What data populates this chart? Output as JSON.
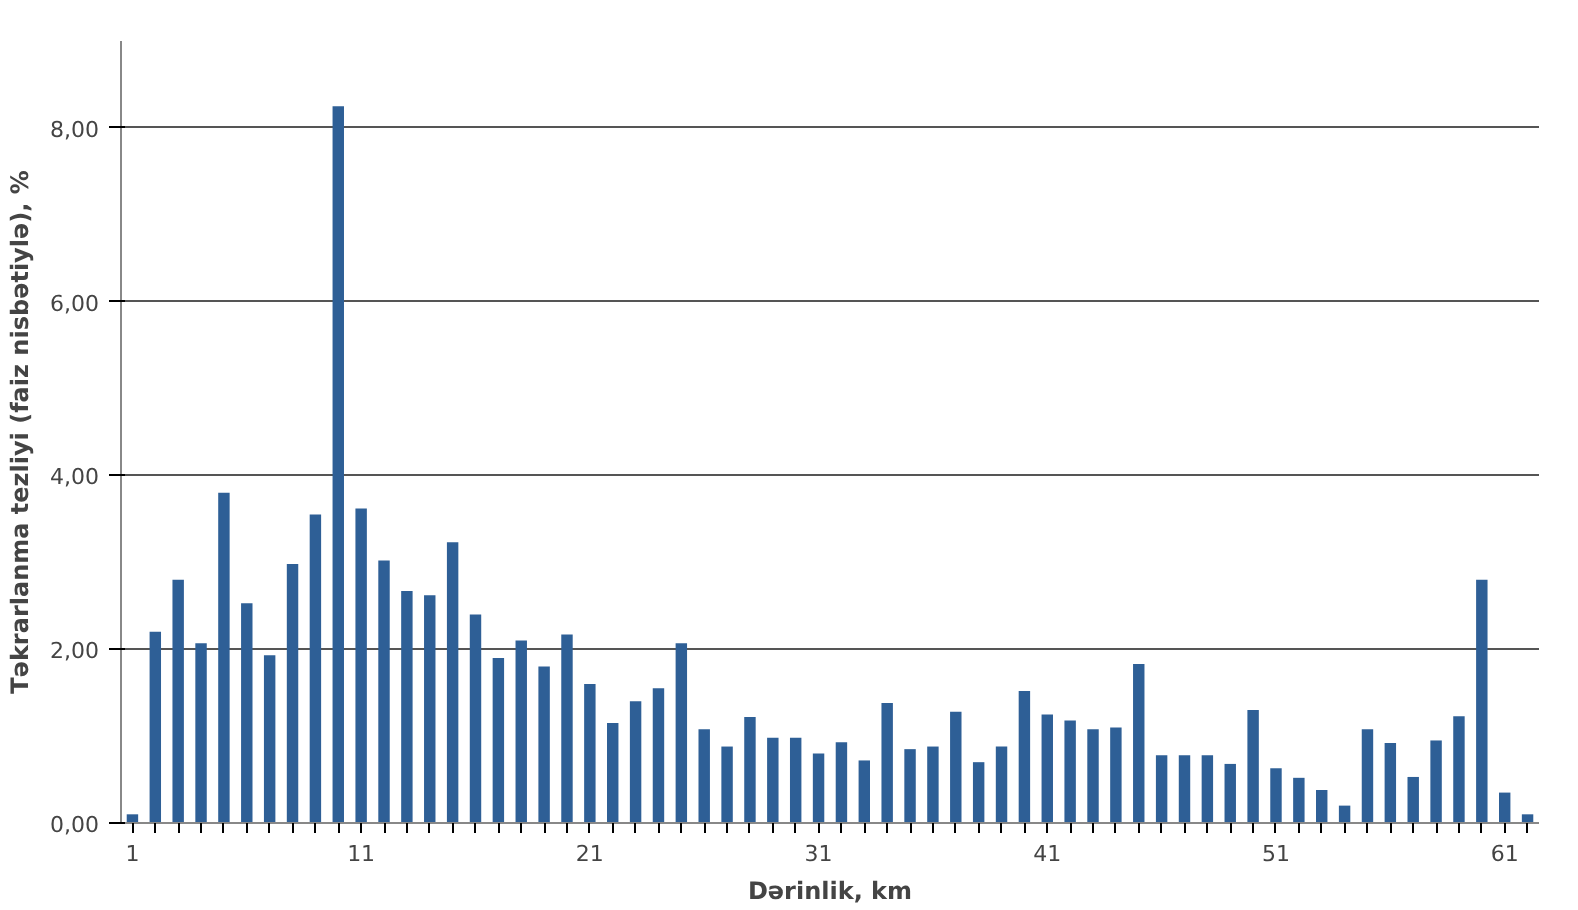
{
  "chart_data": {
    "type": "bar",
    "xlabel": "Dərinlik, km",
    "ylabel": "Təkrarlanma tezliyi (faiz nisbətiylə), %",
    "x": [
      1,
      2,
      3,
      4,
      5,
      6,
      7,
      8,
      9,
      10,
      11,
      12,
      13,
      14,
      15,
      16,
      17,
      18,
      19,
      20,
      21,
      22,
      23,
      24,
      25,
      26,
      27,
      28,
      29,
      30,
      31,
      32,
      33,
      34,
      35,
      36,
      37,
      38,
      39,
      40,
      41,
      42,
      43,
      44,
      45,
      46,
      47,
      48,
      49,
      50,
      51,
      52,
      53,
      54,
      55,
      56,
      57,
      58,
      59,
      60,
      61,
      62
    ],
    "values": [
      0.1,
      2.2,
      2.8,
      2.07,
      3.8,
      2.53,
      1.93,
      2.98,
      3.55,
      8.25,
      3.62,
      3.02,
      2.67,
      2.62,
      3.23,
      2.4,
      1.9,
      2.1,
      1.8,
      2.17,
      1.6,
      1.15,
      1.4,
      1.55,
      2.07,
      1.08,
      0.88,
      1.22,
      0.98,
      0.98,
      0.8,
      0.93,
      0.72,
      1.38,
      0.85,
      0.88,
      1.28,
      0.7,
      0.88,
      1.52,
      1.25,
      1.18,
      1.08,
      1.1,
      1.83,
      0.78,
      0.78,
      0.78,
      0.68,
      1.3,
      0.63,
      0.52,
      0.38,
      0.2,
      1.08,
      0.92,
      0.53,
      0.95,
      1.23,
      2.8,
      0.35,
      0.1
    ],
    "color": "#2e5f96",
    "xlim": [
      0.5,
      62.5
    ],
    "xticks": [
      1,
      11,
      21,
      31,
      41,
      51,
      61
    ],
    "ylim": [
      0,
      9
    ],
    "yticks": [
      {
        "value": 0,
        "label": "0,00"
      },
      {
        "value": 2,
        "label": "2,00"
      },
      {
        "value": 4,
        "label": "4,00"
      },
      {
        "value": 6,
        "label": "6,00"
      },
      {
        "value": 8,
        "label": "8,00"
      }
    ],
    "grid": "y"
  }
}
